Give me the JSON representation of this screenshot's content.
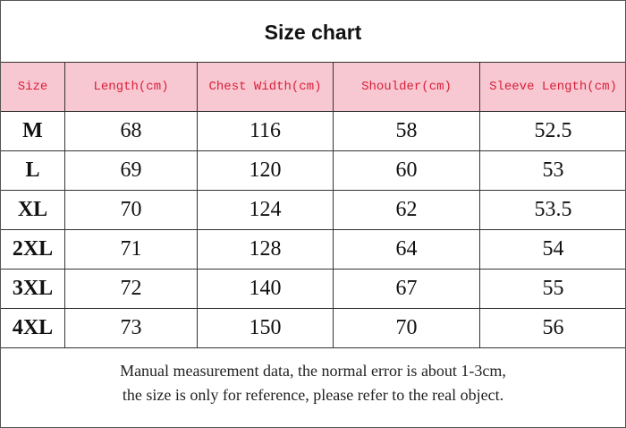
{
  "title": "Size chart",
  "table": {
    "header": [
      "Size",
      "Length(cm)",
      "Chest Width(cm)",
      "Shoulder(cm)",
      "Sleeve Length(cm)"
    ],
    "rows": [
      [
        "M",
        68,
        116,
        58,
        52.5
      ],
      [
        "L",
        69,
        120,
        60,
        53
      ],
      [
        "XL",
        70,
        124,
        62,
        53.5
      ],
      [
        "2XL",
        71,
        128,
        64,
        54
      ],
      [
        "3XL",
        72,
        140,
        67,
        55
      ],
      [
        "4XL",
        73,
        150,
        70,
        56
      ]
    ]
  },
  "footer": [
    "Manual measurement data, the normal error is about 1-3cm,",
    "the size is only for reference, please refer to the real object."
  ]
}
